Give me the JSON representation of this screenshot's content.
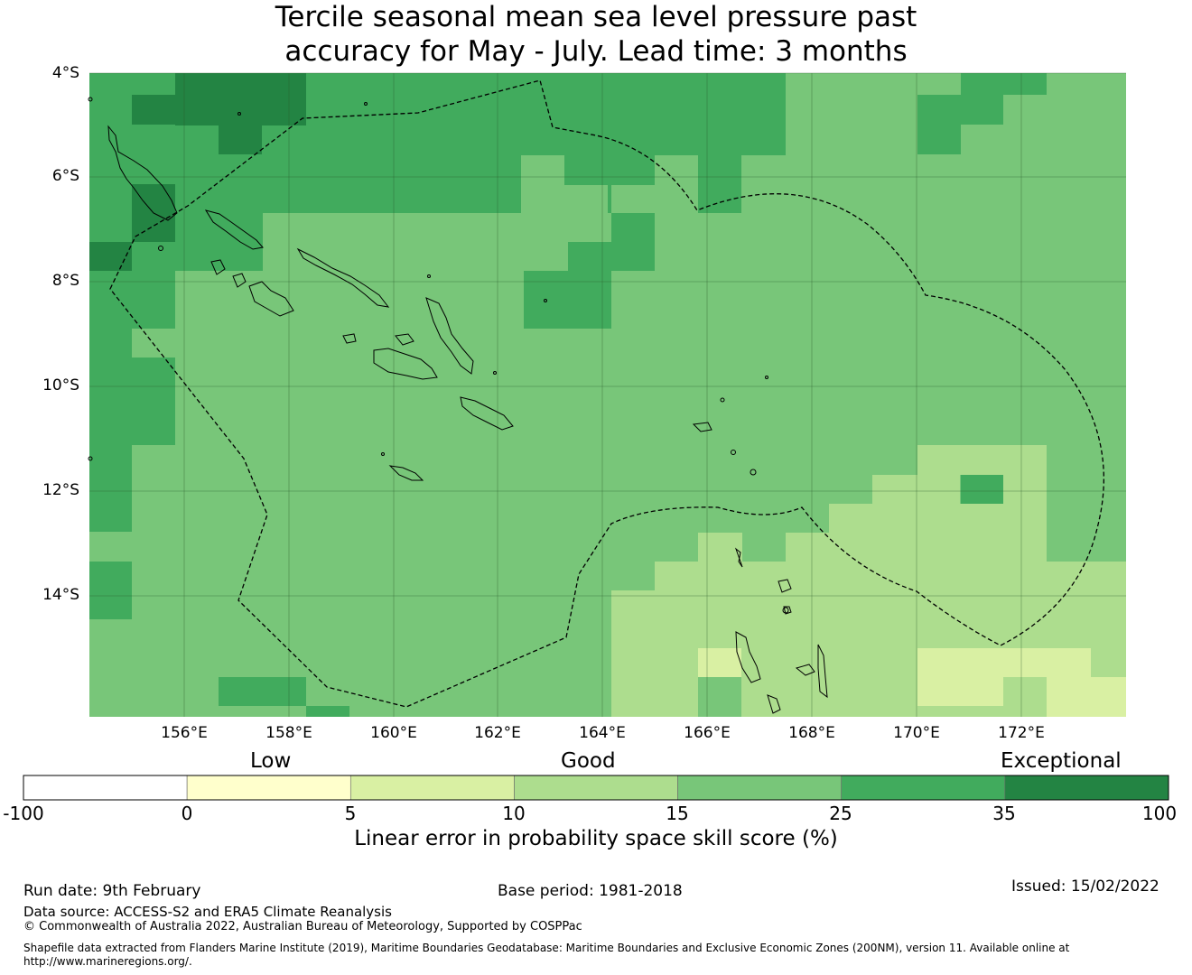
{
  "title": {
    "line1": "Tercile seasonal mean sea level pressure past",
    "line2": "accuracy for May - July. Lead time: 3 months"
  },
  "map": {
    "lat_labels": [
      "4°S",
      "6°S",
      "8°S",
      "10°S",
      "12°S",
      "14°S"
    ],
    "lon_labels": [
      "156°E",
      "158°E",
      "160°E",
      "162°E",
      "164°E",
      "166°E",
      "168°E",
      "170°E",
      "172°E"
    ],
    "colors": {
      "cat_0_5": "#ffffcc",
      "cat_5_10": "#d9f0a3",
      "cat_10_15": "#addd8e",
      "cat_15_25": "#78c679",
      "cat_25_35": "#41ab5d",
      "cat_35_100": "#238443",
      "neg": "#ffffff"
    }
  },
  "colorbar": {
    "category_labels": [
      "Low",
      "Good",
      "Exceptional"
    ],
    "ticks": [
      "-100",
      "0",
      "5",
      "10",
      "15",
      "25",
      "35",
      "100"
    ],
    "title": "Linear error in probability space skill score (%)",
    "bin_colors": [
      "#ffffff",
      "#ffffcc",
      "#d9f0a3",
      "#addd8e",
      "#78c679",
      "#41ab5d",
      "#238443"
    ]
  },
  "footer": {
    "run_date": "Run date: 9th February",
    "base_period": "Base period: 1981-2018",
    "issued": "Issued: 15/02/2022",
    "data_source": "Data source: ACCESS-S2 and ERA5 Climate Reanalysis",
    "copyright": "© Commonwealth of Australia 2022, Australian Bureau of Meteorology, Supported by COSPPac",
    "shapefile_line1": "Shapefile data extracted from Flanders Marine Institute (2019), Maritime Boundaries Geodatabase: Maritime Boundaries and Exclusive Economic Zones (200NM), version 11. Available online at",
    "shapefile_line2": "http://www.marineregions.org/."
  }
}
